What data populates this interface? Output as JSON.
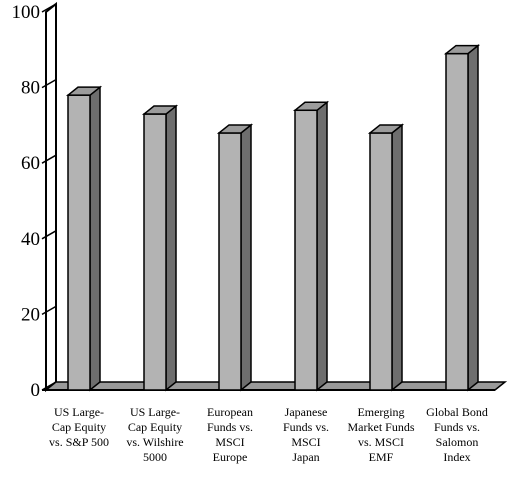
{
  "chart_data": {
    "type": "bar",
    "style": "3d-column",
    "categories": [
      [
        "US Large-",
        "Cap Equity",
        "vs. S&P 500"
      ],
      [
        "US Large-",
        "Cap Equity",
        "vs. Wilshire",
        "5000"
      ],
      [
        "European",
        "Funds vs.",
        "MSCI",
        "Europe"
      ],
      [
        "Japanese",
        "Funds vs.",
        "MSCI",
        "Japan"
      ],
      [
        "Emerging",
        "Market Funds",
        "vs. MSCI",
        "EMF"
      ],
      [
        "Global Bond",
        "Funds vs.",
        "Salomon",
        "Index"
      ]
    ],
    "values": [
      78,
      73,
      68,
      74,
      68,
      89
    ],
    "ylim": [
      0,
      100
    ],
    "yticks": [
      0,
      20,
      40,
      60,
      80,
      100
    ],
    "title": "",
    "xlabel": "",
    "ylabel": "",
    "grid": false,
    "legend": "none",
    "colors": {
      "bar_front": "#b3b3b3",
      "bar_top": "#9c9c9c",
      "bar_side": "#6e6e6e",
      "floor": "#9a9a9a",
      "outline": "#000000"
    }
  }
}
